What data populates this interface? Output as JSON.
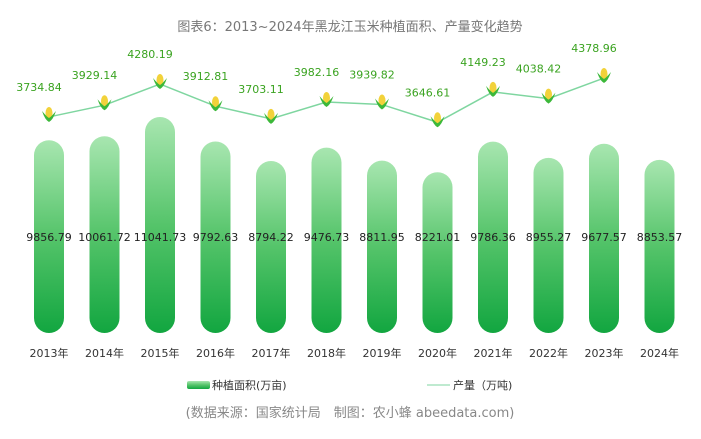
{
  "chart_data": {
    "type": "bar+line",
    "title": "图表6：2013~2024年黑龙江玉米种植面积、产量变化趋势",
    "categories": [
      "2013年",
      "2014年",
      "2015年",
      "2016年",
      "2017年",
      "2018年",
      "2019年",
      "2020年",
      "2021年",
      "2022年",
      "2023年",
      "2024年"
    ],
    "series": [
      {
        "name": "种植面积(万亩)",
        "type": "bar",
        "color": "#2db84d",
        "values": [
          9856.79,
          10061.72,
          11041.73,
          9792.63,
          8794.22,
          9476.73,
          8811.95,
          8221.01,
          9786.36,
          8955.27,
          9677.57,
          8853.57
        ]
      },
      {
        "name": "产量（万吨)",
        "type": "line",
        "color": "#7fd6a0",
        "label_color": "#3aa320",
        "values": [
          3734.84,
          3929.14,
          4280.19,
          3912.81,
          3703.11,
          3982.16,
          3939.82,
          3646.61,
          4149.23,
          4038.42,
          4378.96,
          null
        ]
      }
    ],
    "legend_position": "bottom",
    "grid": false,
    "source": "(数据来源：国家统计局　制图：农小蜂 abeedata.com)"
  }
}
